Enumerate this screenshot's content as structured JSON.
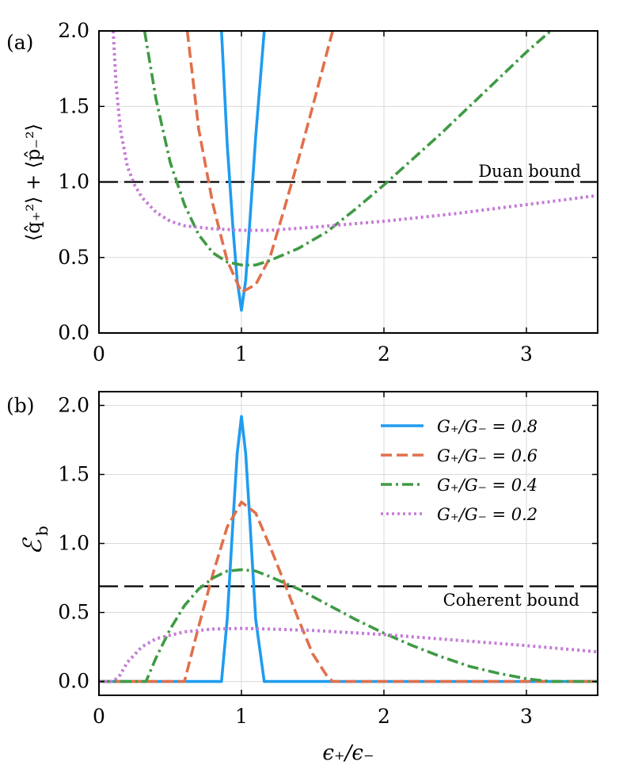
{
  "colors": {
    "s08": "#1f9cf0",
    "s06": "#e1704b",
    "s04": "#3f9a44",
    "s02": "#c57bd6",
    "bound": "#000000",
    "grid": "#d9d9d9"
  },
  "chart_data": [
    {
      "type": "line",
      "panel": "(a)",
      "xlabel": "",
      "ylabel": "⟨q̂₊²⟩ + ⟨p̂₋²⟩",
      "xlim": [
        0,
        3.5
      ],
      "ylim": [
        0,
        2.0
      ],
      "xticks": [
        0,
        1,
        2,
        3
      ],
      "yticks": [
        0.0,
        0.5,
        1.0,
        1.5,
        2.0
      ],
      "xtick_labels": [
        "0",
        "1",
        "2",
        "3"
      ],
      "ytick_labels": [
        "0.0",
        "0.5",
        "1.0",
        "1.5",
        "2.0"
      ],
      "grid": true,
      "hline": {
        "y": 1.0,
        "label": "Duan bound",
        "style": "long-dash"
      },
      "series": [
        {
          "name": "G₊/G₋ = 0.8",
          "style": "solid",
          "color_key": "s08",
          "x": [
            0.86,
            0.9,
            0.94,
            0.97,
            1.0,
            1.03,
            1.06,
            1.1,
            1.16
          ],
          "y": [
            2.0,
            1.25,
            0.7,
            0.35,
            0.15,
            0.35,
            0.75,
            1.3,
            2.0
          ]
        },
        {
          "name": "G₊/G₋ = 0.6",
          "style": "dashed",
          "color_key": "s06",
          "x": [
            0.62,
            0.7,
            0.8,
            0.9,
            1.0,
            1.1,
            1.2,
            1.3,
            1.4,
            1.5,
            1.64
          ],
          "y": [
            2.0,
            1.35,
            0.85,
            0.48,
            0.27,
            0.32,
            0.5,
            0.82,
            1.15,
            1.5,
            2.0
          ]
        },
        {
          "name": "G₊/G₋ = 0.4",
          "style": "dashdot",
          "color_key": "s04",
          "x": [
            0.32,
            0.4,
            0.5,
            0.6,
            0.7,
            0.8,
            0.9,
            1.0,
            1.1,
            1.2,
            1.4,
            1.6,
            1.8,
            2.0,
            2.2,
            2.4,
            2.6,
            2.8,
            3.0,
            3.17
          ],
          "y": [
            2.0,
            1.55,
            1.13,
            0.85,
            0.65,
            0.53,
            0.47,
            0.45,
            0.45,
            0.48,
            0.56,
            0.67,
            0.82,
            0.98,
            1.15,
            1.32,
            1.5,
            1.68,
            1.86,
            2.0
          ]
        },
        {
          "name": "G₊/G₋ = 0.2",
          "style": "dotted",
          "color_key": "s02",
          "x": [
            0.1,
            0.12,
            0.15,
            0.2,
            0.25,
            0.3,
            0.4,
            0.5,
            0.6,
            0.8,
            1.0,
            1.2,
            1.5,
            2.0,
            2.5,
            3.0,
            3.5
          ],
          "y": [
            2.0,
            1.65,
            1.35,
            1.1,
            0.98,
            0.9,
            0.8,
            0.74,
            0.71,
            0.69,
            0.68,
            0.68,
            0.7,
            0.74,
            0.79,
            0.85,
            0.91
          ]
        }
      ]
    },
    {
      "type": "line",
      "panel": "(b)",
      "xlabel": "ϵ₊/ϵ₋",
      "ylabel": "ℰ",
      "ylabel_sub": "b",
      "xlim": [
        0,
        3.5
      ],
      "ylim": [
        -0.1,
        2.1
      ],
      "xticks": [
        0,
        1,
        2,
        3
      ],
      "yticks": [
        0.0,
        0.5,
        1.0,
        1.5,
        2.0
      ],
      "xtick_labels": [
        "0",
        "1",
        "2",
        "3"
      ],
      "ytick_labels": [
        "0.0",
        "0.5",
        "1.0",
        "1.5",
        "2.0"
      ],
      "grid": true,
      "hline": {
        "y": 0.69,
        "label": "Coherent bound",
        "style": "long-dash"
      },
      "legend": {
        "position": "top-right"
      },
      "series": [
        {
          "name": "G₊/G₋ = 0.8",
          "style": "solid",
          "color_key": "s08",
          "x": [
            0,
            0.86,
            0.9,
            0.94,
            0.97,
            1.0,
            1.03,
            1.06,
            1.1,
            1.16,
            3.5
          ],
          "y": [
            0,
            0,
            0.45,
            1.15,
            1.65,
            1.92,
            1.65,
            1.15,
            0.45,
            0,
            0
          ]
        },
        {
          "name": "G₊/G₋ = 0.6",
          "style": "dashed",
          "color_key": "s06",
          "x": [
            0,
            0.6,
            0.65,
            0.7,
            0.8,
            0.9,
            1.0,
            1.1,
            1.2,
            1.3,
            1.4,
            1.5,
            1.6,
            1.64,
            3.5
          ],
          "y": [
            0,
            0,
            0.2,
            0.4,
            0.78,
            1.12,
            1.3,
            1.22,
            0.98,
            0.72,
            0.45,
            0.2,
            0.04,
            0,
            0
          ]
        },
        {
          "name": "G₊/G₋ = 0.4",
          "style": "dashdot",
          "color_key": "s04",
          "x": [
            0,
            0.33,
            0.4,
            0.5,
            0.6,
            0.7,
            0.8,
            0.9,
            1.0,
            1.1,
            1.2,
            1.4,
            1.6,
            1.8,
            2.0,
            2.2,
            2.4,
            2.6,
            2.8,
            3.0,
            3.17,
            3.5
          ],
          "y": [
            0,
            0,
            0.17,
            0.38,
            0.55,
            0.67,
            0.75,
            0.8,
            0.81,
            0.8,
            0.76,
            0.67,
            0.56,
            0.45,
            0.35,
            0.26,
            0.18,
            0.11,
            0.06,
            0.02,
            0,
            0
          ]
        },
        {
          "name": "G₊/G₋ = 0.2",
          "style": "dotted",
          "color_key": "s02",
          "x": [
            0,
            0.1,
            0.15,
            0.2,
            0.3,
            0.4,
            0.6,
            0.8,
            1.0,
            1.2,
            1.5,
            2.0,
            2.5,
            3.0,
            3.5
          ],
          "y": [
            0,
            0,
            0.05,
            0.14,
            0.25,
            0.31,
            0.36,
            0.38,
            0.385,
            0.38,
            0.37,
            0.34,
            0.3,
            0.26,
            0.215
          ]
        }
      ]
    }
  ]
}
